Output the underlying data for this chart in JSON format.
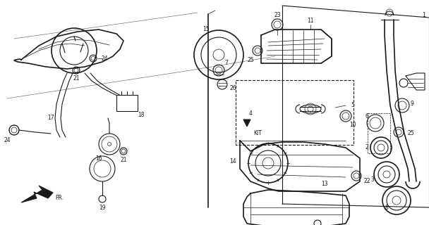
{
  "background_color": "#ffffff",
  "line_color": "#1a1a1a",
  "figsize": [
    6.08,
    3.2
  ],
  "dpi": 100,
  "gray": "#888888",
  "darkgray": "#444444"
}
